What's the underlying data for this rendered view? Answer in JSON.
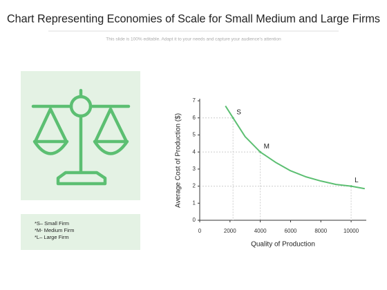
{
  "chart_data": {
    "type": "line",
    "title": "Chart Representing Economies of Scale for Small Medium and Large Firms",
    "subtitle": "This slide is 100% editable. Adapt it to your needs and capture your audience's attention",
    "x_label": "Quality of Production",
    "y_label": "Average Cost of Production ($)",
    "x": [
      1700,
      2200,
      3000,
      4000,
      5000,
      6000,
      7000,
      8000,
      9000,
      10000,
      10900
    ],
    "values": [
      6.7,
      6.0,
      4.9,
      4.0,
      3.4,
      2.9,
      2.55,
      2.3,
      2.1,
      2.0,
      1.85
    ],
    "color": "#5cbf72",
    "xlim": [
      0,
      11000
    ],
    "xticks": [
      0,
      2000,
      4000,
      6000,
      8000,
      10000
    ],
    "ylim": [
      0,
      7
    ],
    "yticks": [
      0,
      1,
      2,
      3,
      4,
      5,
      6,
      7
    ],
    "points": [
      {
        "label": "S",
        "x": 2200,
        "y": 6.0
      },
      {
        "label": "M",
        "x": 4000,
        "y": 4.0
      },
      {
        "label": "L",
        "x": 10000,
        "y": 2.0
      }
    ],
    "legend_notes": [
      "*S– Small Firm",
      "*M- Medium Firm",
      "*L– Large Firm"
    ]
  }
}
